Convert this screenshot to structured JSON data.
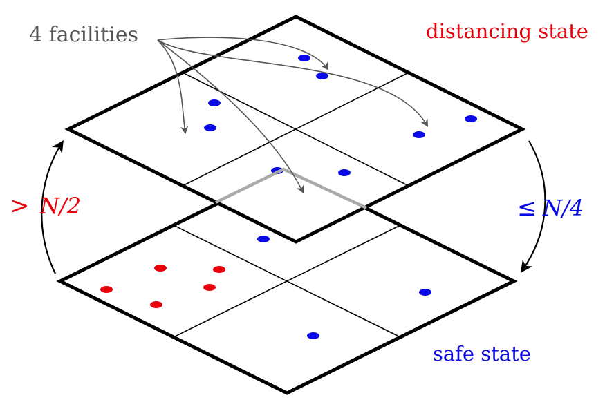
{
  "labels": {
    "facilities": "4 facilities",
    "distancing_state": "distancing state",
    "safe_state": "safe state",
    "up_condition_symbol": ">",
    "up_condition_value": "N/2",
    "down_condition_symbol": "≤",
    "down_condition_value": "N/4"
  },
  "colors": {
    "red": "#e8000b",
    "blue": "#0a0ae6",
    "gray": "#555555",
    "frame": "#000000",
    "highlight": "#aaaaaa"
  }
}
